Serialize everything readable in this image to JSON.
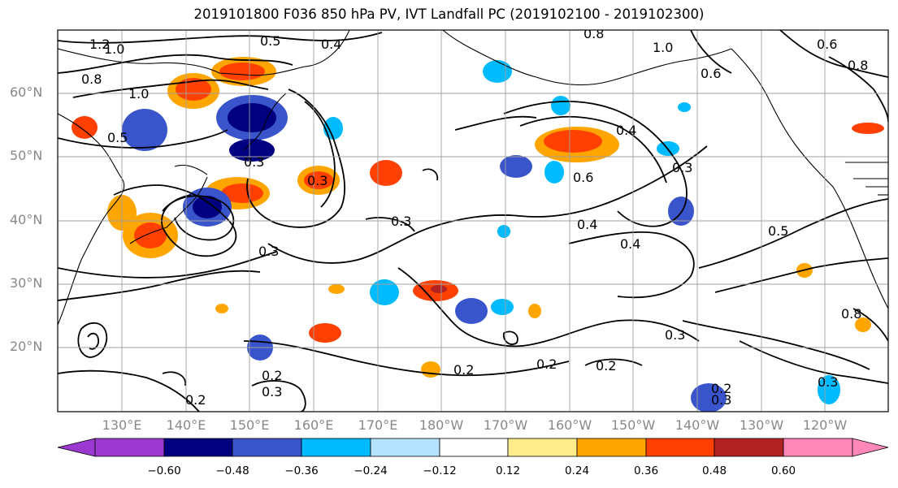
{
  "title": "2019101800 F036 850 hPa PV, IVT Landfall PC (2019102100 - 2019102300)",
  "lat_labels": [
    "60°N",
    "50°N",
    "40°N",
    "30°N",
    "20°N"
  ],
  "lon_labels": [
    "130°E",
    "140°E",
    "150°E",
    "160°E",
    "170°E",
    "180°W",
    "170°W",
    "160°W",
    "150°W",
    "140°W",
    "130°W",
    "120°W"
  ],
  "contour_labels": [
    "1.2",
    "1.0",
    "0.8",
    "1.0",
    "0.5",
    "0.4",
    "0.8",
    "1.0",
    "0.6",
    "0.6",
    "0.8",
    "0.5",
    "0.3",
    "0.4",
    "0.3",
    "0.3",
    "0.3",
    "0.4",
    "0.4",
    "0.5",
    "0.3",
    "0.3",
    "0.2",
    "0.3",
    "0.2",
    "0.2",
    "0.2",
    "0.2",
    "0.2",
    "0.3",
    "0.6",
    "0.8",
    "0.3"
  ],
  "colorbar": {
    "ticks": [
      "−0.60",
      "−0.48",
      "−0.36",
      "−0.24",
      "−0.12",
      "0.12",
      "0.24",
      "0.36",
      "0.48",
      "0.60"
    ],
    "colors": [
      "#9a38d0",
      "#000080",
      "#3a55cc",
      "#00bbff",
      "#b3e3ff",
      "#ffffff",
      "#ffec8b",
      "#ffa500",
      "#ff4000",
      "#b22222",
      "#ff88b8"
    ]
  },
  "colors": {
    "land_outline": "#000000",
    "contour": "#000000",
    "grid": "#a0a0a0"
  }
}
